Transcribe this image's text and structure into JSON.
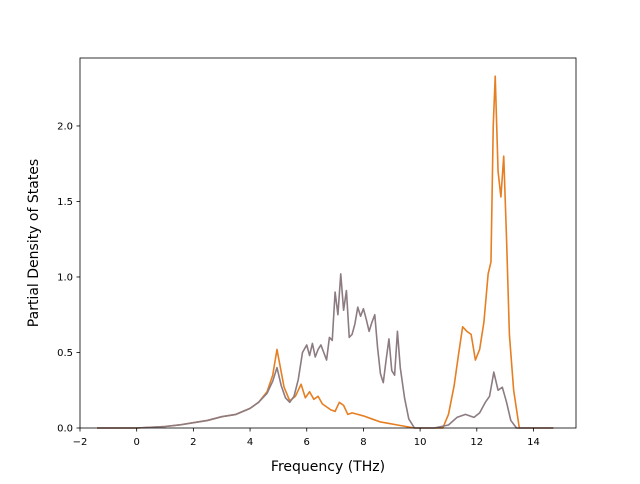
{
  "chart_data": {
    "type": "line",
    "title": "",
    "xlabel": "Frequency (THz)",
    "ylabel": "Partial Density of States",
    "xlim": [
      -2.0,
      15.5
    ],
    "ylim": [
      0.0,
      2.45
    ],
    "grid": false,
    "x_ticks": [
      -2,
      0,
      2,
      4,
      6,
      8,
      10,
      12,
      14
    ],
    "x_tick_labels": [
      "−2",
      "0",
      "2",
      "4",
      "6",
      "8",
      "10",
      "12",
      "14"
    ],
    "y_ticks": [
      0.0,
      0.5,
      1.0,
      1.5,
      2.0
    ],
    "y_tick_labels": [
      "0.0",
      "0.5",
      "1.0",
      "1.5",
      "2.0"
    ],
    "series": [
      {
        "color": "#e67e22",
        "x": [
          -1.4,
          0.0,
          0.5,
          1.0,
          1.5,
          2.0,
          2.5,
          3.0,
          3.5,
          4.0,
          4.3,
          4.6,
          4.8,
          4.95,
          5.05,
          5.2,
          5.4,
          5.6,
          5.8,
          5.95,
          6.1,
          6.25,
          6.4,
          6.55,
          6.7,
          6.85,
          7.0,
          7.15,
          7.3,
          7.45,
          7.6,
          7.8,
          8.0,
          8.3,
          8.6,
          8.9,
          9.2,
          9.5,
          9.8,
          10.0,
          10.5,
          10.8,
          11.0,
          11.2,
          11.35,
          11.5,
          11.65,
          11.8,
          11.95,
          12.1,
          12.25,
          12.4,
          12.5,
          12.58,
          12.65,
          12.75,
          12.85,
          12.95,
          13.05,
          13.15,
          13.3,
          13.5,
          14.0,
          14.7
        ],
        "values": [
          0.0,
          0.0,
          0.005,
          0.01,
          0.02,
          0.035,
          0.05,
          0.075,
          0.09,
          0.13,
          0.17,
          0.24,
          0.35,
          0.52,
          0.42,
          0.27,
          0.18,
          0.21,
          0.29,
          0.2,
          0.24,
          0.19,
          0.21,
          0.16,
          0.14,
          0.12,
          0.11,
          0.17,
          0.15,
          0.09,
          0.1,
          0.09,
          0.08,
          0.06,
          0.04,
          0.03,
          0.02,
          0.01,
          0.0,
          0.0,
          0.0,
          0.0,
          0.09,
          0.28,
          0.48,
          0.67,
          0.64,
          0.62,
          0.45,
          0.52,
          0.7,
          1.02,
          1.1,
          2.0,
          2.33,
          1.7,
          1.53,
          1.8,
          1.25,
          0.62,
          0.25,
          0.0,
          0.0,
          0.0
        ]
      },
      {
        "color": "#8c7b82",
        "x": [
          -1.4,
          0.0,
          0.5,
          1.0,
          1.5,
          2.0,
          2.5,
          3.0,
          3.5,
          4.0,
          4.3,
          4.6,
          4.8,
          4.95,
          5.1,
          5.25,
          5.4,
          5.55,
          5.7,
          5.85,
          6.0,
          6.1,
          6.2,
          6.3,
          6.4,
          6.5,
          6.6,
          6.7,
          6.8,
          6.9,
          7.0,
          7.1,
          7.2,
          7.3,
          7.4,
          7.5,
          7.6,
          7.7,
          7.8,
          7.9,
          8.0,
          8.1,
          8.2,
          8.3,
          8.4,
          8.5,
          8.6,
          8.7,
          8.8,
          8.9,
          9.0,
          9.1,
          9.2,
          9.3,
          9.45,
          9.6,
          9.8,
          10.0,
          10.5,
          11.0,
          11.3,
          11.6,
          11.9,
          12.1,
          12.3,
          12.45,
          12.6,
          12.75,
          12.9,
          13.05,
          13.2,
          13.4,
          14.0,
          14.7
        ],
        "values": [
          0.0,
          0.0,
          0.005,
          0.01,
          0.02,
          0.035,
          0.05,
          0.075,
          0.09,
          0.13,
          0.17,
          0.23,
          0.31,
          0.4,
          0.28,
          0.2,
          0.17,
          0.21,
          0.32,
          0.5,
          0.55,
          0.48,
          0.56,
          0.47,
          0.52,
          0.55,
          0.5,
          0.45,
          0.6,
          0.58,
          0.9,
          0.75,
          1.02,
          0.78,
          0.91,
          0.6,
          0.62,
          0.69,
          0.8,
          0.74,
          0.79,
          0.72,
          0.64,
          0.7,
          0.75,
          0.53,
          0.36,
          0.3,
          0.45,
          0.59,
          0.38,
          0.35,
          0.64,
          0.4,
          0.2,
          0.06,
          0.0,
          0.0,
          0.0,
          0.02,
          0.07,
          0.09,
          0.07,
          0.1,
          0.17,
          0.21,
          0.37,
          0.25,
          0.27,
          0.17,
          0.05,
          0.0,
          0.0,
          0.0
        ]
      }
    ]
  }
}
